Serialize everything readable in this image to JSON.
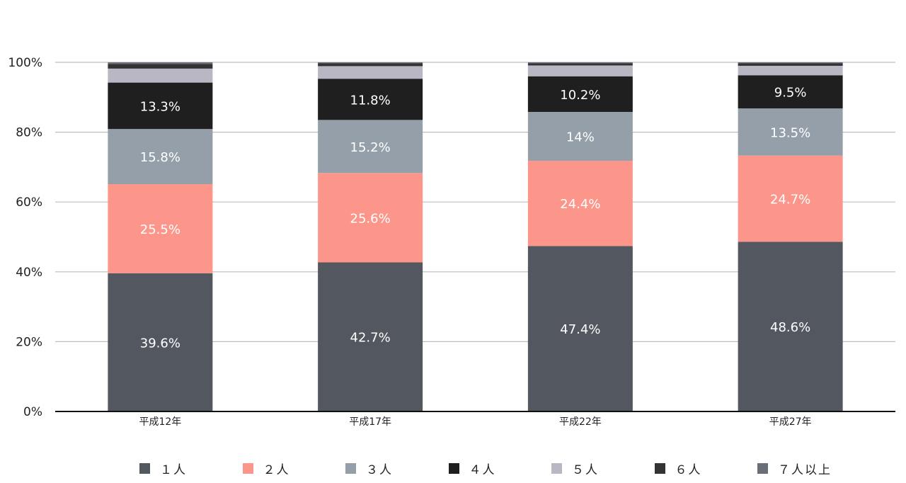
{
  "chart_data": {
    "type": "bar",
    "stacked": true,
    "categories": [
      "平成12年",
      "平成17年",
      "平成22年",
      "平成27年"
    ],
    "ylim": [
      0,
      100
    ],
    "yticks": [
      "0%",
      "20%",
      "40%",
      "60%",
      "80%",
      "100%"
    ],
    "grid": true,
    "legend_position": "bottom",
    "series": [
      {
        "name": "１人",
        "color": "#53575f",
        "values": [
          39.6,
          42.7,
          47.4,
          48.6
        ],
        "labels": [
          "39.6%",
          "42.7%",
          "47.4%",
          "48.6%"
        ]
      },
      {
        "name": "２人",
        "color": "#fd968a",
        "values": [
          25.5,
          25.6,
          24.4,
          24.7
        ],
        "labels": [
          "25.5%",
          "25.6%",
          "24.4%",
          "24.7%"
        ]
      },
      {
        "name": "３人",
        "color": "#959fa9",
        "values": [
          15.8,
          15.2,
          14.0,
          13.5
        ],
        "labels": [
          "15.8%",
          "15.2%",
          "14%",
          "13.5%"
        ]
      },
      {
        "name": "４人",
        "color": "#1f1f1f",
        "values": [
          13.3,
          11.8,
          10.2,
          9.5
        ],
        "labels": [
          "13.3%",
          "11.8%",
          "10.2%",
          "9.5%"
        ]
      },
      {
        "name": "５人",
        "color": "#b8b7c3",
        "values": [
          4.0,
          3.6,
          3.1,
          2.7
        ],
        "labels": [
          "",
          "",
          "",
          ""
        ]
      },
      {
        "name": "６人",
        "color": "#333333",
        "values": [
          1.3,
          0.8,
          0.6,
          0.7
        ],
        "labels": [
          "",
          "",
          "",
          ""
        ]
      },
      {
        "name": "７人以上",
        "color": "#6a6e77",
        "values": [
          0.5,
          0.3,
          0.3,
          0.3
        ],
        "labels": [
          "",
          "",
          "",
          ""
        ]
      }
    ]
  }
}
